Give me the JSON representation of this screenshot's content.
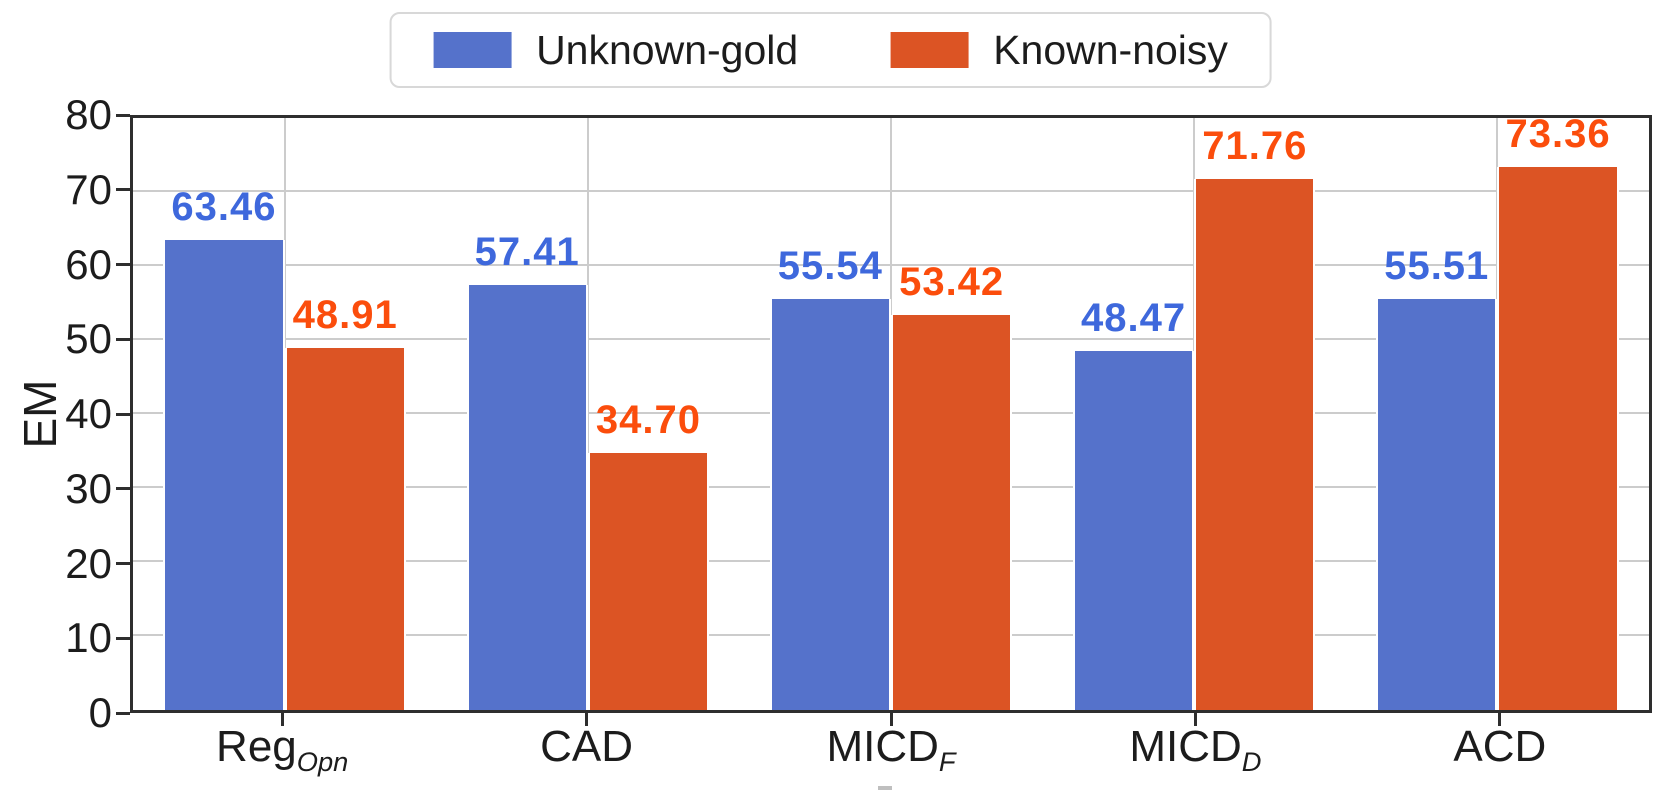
{
  "chart_data": {
    "type": "bar",
    "title": "",
    "xlabel": "",
    "ylabel": "EM",
    "ylim": [
      0,
      80
    ],
    "yticks": [
      0,
      10,
      20,
      30,
      40,
      50,
      60,
      70,
      80
    ],
    "grid": true,
    "legend_position": "top-center",
    "categories": [
      "Reg_Opn",
      "CAD",
      "MICD_F",
      "MICD_D",
      "ACD"
    ],
    "categories_rich": [
      {
        "base": "Reg",
        "sub": "Opn"
      },
      {
        "base": "CAD",
        "sub": ""
      },
      {
        "base": "MICD",
        "sub": "F"
      },
      {
        "base": "MICD",
        "sub": "D"
      },
      {
        "base": "ACD",
        "sub": ""
      }
    ],
    "series": [
      {
        "name": "Unknown-gold",
        "color": "#5572CB",
        "label_color": "#3E68DC",
        "values": [
          63.46,
          57.41,
          55.54,
          48.47,
          55.51
        ]
      },
      {
        "name": "Known-noisy",
        "color": "#DC5424",
        "label_color": "#FB4D0C",
        "values": [
          48.91,
          34.7,
          53.42,
          71.76,
          73.36
        ]
      }
    ]
  },
  "style": {
    "grid_color": "#cccccc",
    "spine_color": "#2e2e2e",
    "tick_label_color": "#1c1c1c",
    "legend_border_color": "#d8d8d8",
    "background": "#ffffff"
  }
}
